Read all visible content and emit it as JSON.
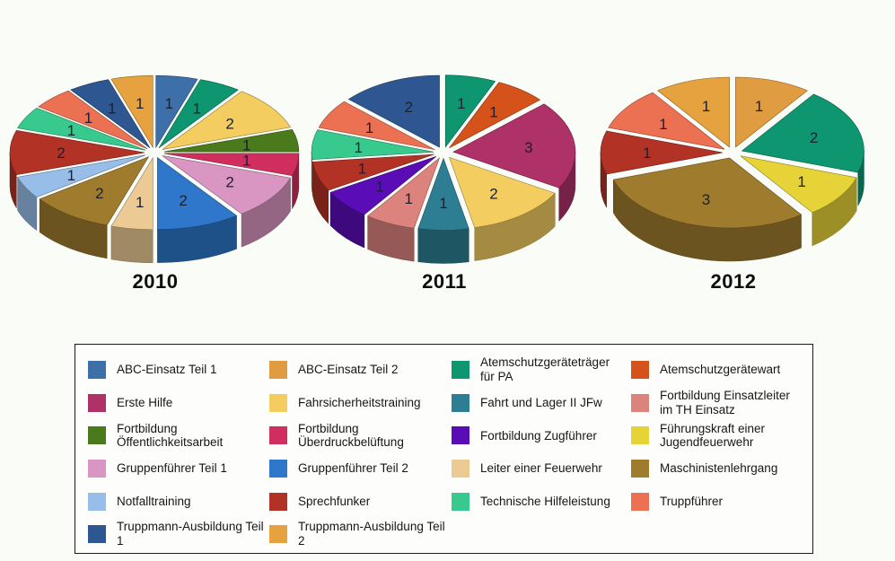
{
  "page": {
    "background_color": "#fafdf7",
    "legend_border_color": "#1a1a1a",
    "value_label_color": "#1a2030"
  },
  "chart_data": [
    {
      "type": "pie",
      "title": "2010",
      "style": "3d-exploded",
      "total": 20,
      "slices": [
        {
          "label": "ABC-Einsatz Teil 1",
          "category": 0,
          "value": 1
        },
        {
          "label": "Atemschutzgeräteträger für PA",
          "category": 2,
          "value": 1
        },
        {
          "label": "Fahrsicherheitstraining",
          "category": 5,
          "value": 2
        },
        {
          "label": "Fortbildung Öffentlichkeitsarbeit",
          "category": 8,
          "value": 1
        },
        {
          "label": "Fortbildung Überdruckbelüftung",
          "category": 9,
          "value": 1
        },
        {
          "label": "Gruppenführer Teil 1",
          "category": 12,
          "value": 2
        },
        {
          "label": "Gruppenführer Teil 2",
          "category": 13,
          "value": 2
        },
        {
          "label": "Leiter einer Feuerwehr",
          "category": 14,
          "value": 1
        },
        {
          "label": "Maschinistenlehrgang",
          "category": 15,
          "value": 2
        },
        {
          "label": "Notfalltraining",
          "category": 16,
          "value": 1
        },
        {
          "label": "Sprechfunker",
          "category": 17,
          "value": 2
        },
        {
          "label": "Technische Hilfeleistung",
          "category": 18,
          "value": 1
        },
        {
          "label": "Truppführer",
          "category": 19,
          "value": 1
        },
        {
          "label": "Truppmann-Ausbildung Teil 1",
          "category": 20,
          "value": 1
        },
        {
          "label": "Truppmann-Ausbildung Teil 2",
          "category": 21,
          "value": 1
        }
      ]
    },
    {
      "type": "pie",
      "title": "2011",
      "style": "3d-exploded",
      "total": 15,
      "slices": [
        {
          "label": "Atemschutzgeräteträger für PA",
          "category": 2,
          "value": 1
        },
        {
          "label": "Atemschutzgerätewart",
          "category": 3,
          "value": 1
        },
        {
          "label": "Erste Hilfe",
          "category": 4,
          "value": 3
        },
        {
          "label": "Fahrsicherheitstraining",
          "category": 5,
          "value": 2
        },
        {
          "label": "Fahrt und Lager II  JFw",
          "category": 6,
          "value": 1
        },
        {
          "label": "Fortbildung Einsatzleiter im TH Einsatz",
          "category": 7,
          "value": 1
        },
        {
          "label": "Fortbildung Zugführer",
          "category": 10,
          "value": 1
        },
        {
          "label": "Sprechfunker",
          "category": 17,
          "value": 1
        },
        {
          "label": "Technische Hilfeleistung",
          "category": 18,
          "value": 1
        },
        {
          "label": "Truppführer",
          "category": 19,
          "value": 1
        },
        {
          "label": "Truppmann-Ausbildung Teil 1",
          "category": 20,
          "value": 2
        }
      ]
    },
    {
      "type": "pie",
      "title": "2012",
      "style": "3d-exploded",
      "total": 10,
      "slices": [
        {
          "label": "ABC-Einsatz Teil 2",
          "category": 1,
          "value": 1
        },
        {
          "label": "Atemschutzgeräteträger für PA",
          "category": 2,
          "value": 2
        },
        {
          "label": "Führungskraft einer Jugendfeuerwehr",
          "category": 11,
          "value": 1
        },
        {
          "label": "Maschinistenlehrgang",
          "category": 15,
          "value": 3
        },
        {
          "label": "Sprechfunker",
          "category": 17,
          "value": 1
        },
        {
          "label": "Truppführer",
          "category": 19,
          "value": 1
        },
        {
          "label": "Truppmann-Ausbildung Teil 2",
          "category": 21,
          "value": 1
        }
      ]
    }
  ],
  "legend": {
    "items": [
      {
        "label": "ABC-Einsatz Teil 1",
        "color": "#3d6fa8"
      },
      {
        "label": "ABC-Einsatz Teil 2",
        "color": "#e09c41"
      },
      {
        "label": "Atemschutzgeräteträger für PA",
        "color": "#0e9671"
      },
      {
        "label": "Atemschutzgerätewart",
        "color": "#d5521b"
      },
      {
        "label": "Erste Hilfe",
        "color": "#ae3168"
      },
      {
        "label": "Fahrsicherheitstraining",
        "color": "#f3cd5f"
      },
      {
        "label": "Fahrt und Lager II  JFw",
        "color": "#2e7e93"
      },
      {
        "label": "Fortbildung Einsatzleiter im TH Einsatz",
        "color": "#dd837e"
      },
      {
        "label": "Fortbildung Öffentlichkeitsarbeit",
        "color": "#4a7a1b"
      },
      {
        "label": "Fortbildung Überdruckbelüftung",
        "color": "#cf2e5e"
      },
      {
        "label": "Fortbildung Zugführer",
        "color": "#5a0db6"
      },
      {
        "label": "Führungskraft einer Jugendfeuerwehr",
        "color": "#e5d338"
      },
      {
        "label": "Gruppenführer Teil 1",
        "color": "#d996c2"
      },
      {
        "label": "Gruppenführer Teil 2",
        "color": "#2e77ca"
      },
      {
        "label": "Leiter einer Feuerwehr",
        "color": "#ecca94"
      },
      {
        "label": "Maschinistenlehrgang",
        "color": "#9e7b2d"
      },
      {
        "label": "Notfalltraining",
        "color": "#97bee9"
      },
      {
        "label": "Sprechfunker",
        "color": "#b23226"
      },
      {
        "label": "Technische Hilfeleistung",
        "color": "#37c98e"
      },
      {
        "label": "Truppführer",
        "color": "#ec7052"
      },
      {
        "label": "Truppmann-Ausbildung Teil 1",
        "color": "#2e5791"
      },
      {
        "label": "Truppmann-Ausbildung Teil 2",
        "color": "#e6a23f"
      }
    ]
  }
}
